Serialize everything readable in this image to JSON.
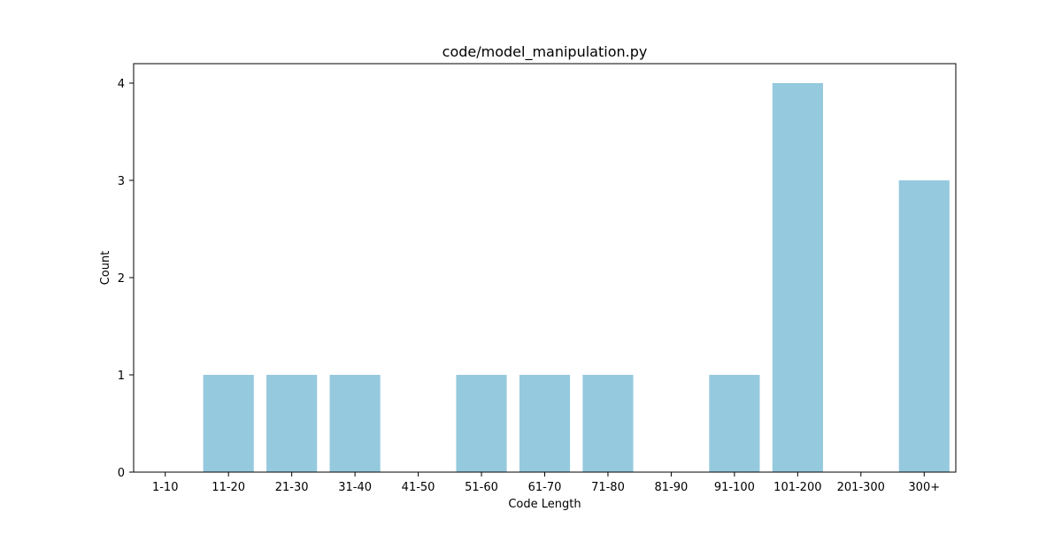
{
  "chart_data": {
    "type": "bar",
    "title": "code/model_manipulation.py",
    "xlabel": "Code Length",
    "ylabel": "Count",
    "categories": [
      "1-10",
      "11-20",
      "21-30",
      "31-40",
      "41-50",
      "51-60",
      "61-70",
      "71-80",
      "81-90",
      "91-100",
      "101-200",
      "201-300",
      "300+"
    ],
    "values": [
      0,
      1,
      1,
      1,
      0,
      1,
      1,
      1,
      0,
      1,
      4,
      0,
      3
    ],
    "ylim": [
      0,
      4.2
    ],
    "yticks": [
      "0",
      "1",
      "2",
      "3",
      "4"
    ],
    "bar_color": "#95c9de",
    "grid": false,
    "legend": "none"
  }
}
